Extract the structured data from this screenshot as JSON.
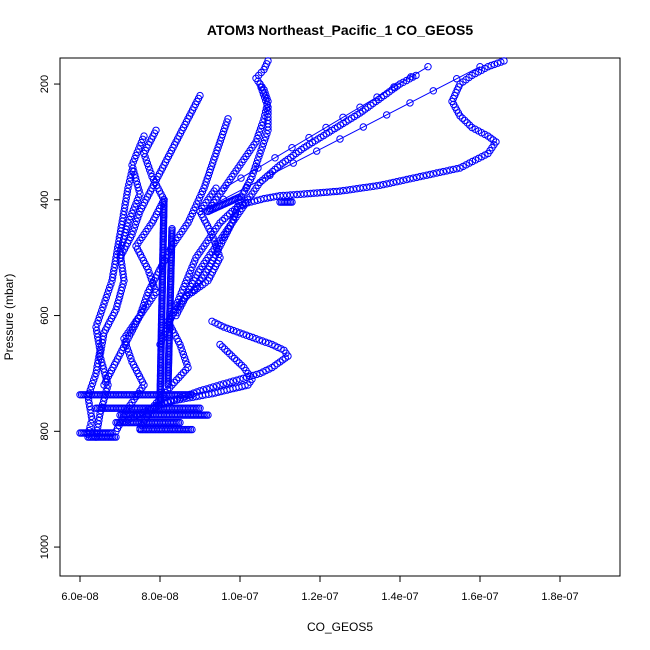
{
  "chart_data": {
    "type": "scatter",
    "title": "ATOM3 Northeast_Pacific_1 CO_GEOS5",
    "xlabel": "CO_GEOS5",
    "ylabel": "Pressure (mbar)",
    "xlim": [
      5.5e-08,
      1.95e-07
    ],
    "ylim": [
      1050,
      155
    ],
    "y_reversed": true,
    "grid": false,
    "legend": "none",
    "color": "#0000ff",
    "x_ticks": [
      6e-08,
      8e-08,
      1e-07,
      1.2e-07,
      1.4e-07,
      1.6e-07,
      1.8e-07
    ],
    "x_tick_labels": [
      "6.0e-08",
      "8.0e-08",
      "1.0e-07",
      "1.2e-07",
      "1.4e-07",
      "1.6e-07",
      "1.8e-07"
    ],
    "y_ticks": [
      200,
      400,
      600,
      800,
      1000
    ],
    "y_tick_labels": [
      "200",
      "400",
      "600",
      "800",
      "1000"
    ],
    "series": [
      {
        "x": [
          6.2e-08,
          6.3e-08,
          6.2e-08,
          6.4e-08,
          6.5e-08,
          6.4e-08,
          6.6e-08,
          6.8e-08,
          6.9e-08,
          7e-08,
          7.1e-08,
          7.2e-08,
          7.3e-08
        ],
        "y": [
          805,
          780,
          740,
          700,
          660,
          620,
          580,
          540,
          500,
          460,
          420,
          380,
          350
        ]
      },
      {
        "x": [
          6.4e-08,
          6.5e-08,
          6.7e-08,
          6.5e-08,
          6.6e-08,
          6.9e-08,
          7.1e-08,
          7e-08,
          7.2e-08,
          7.5e-08,
          7.3e-08,
          7.6e-08
        ],
        "y": [
          810,
          770,
          720,
          670,
          630,
          590,
          540,
          490,
          440,
          390,
          340,
          290
        ]
      },
      {
        "x": [
          6.9e-08,
          7.2e-08,
          7.6e-08,
          7.3e-08,
          7.1e-08,
          7.5e-08,
          7.9e-08,
          7.7e-08,
          7.4e-08,
          7.8e-08,
          8.1e-08,
          7.8e-08,
          7.6e-08,
          7.9e-08
        ],
        "y": [
          800,
          760,
          720,
          680,
          640,
          600,
          560,
          520,
          480,
          440,
          400,
          360,
          320,
          280
        ]
      },
      {
        "x": [
          7.5e-08,
          7.8e-08,
          8.3e-08,
          8.7e-08,
          8.5e-08,
          8.2e-08,
          8.6e-08,
          9.2e-08,
          9.5e-08,
          9.3e-08,
          9e-08,
          9.4e-08
        ],
        "y": [
          795,
          760,
          720,
          690,
          650,
          610,
          570,
          540,
          500,
          460,
          420,
          380
        ]
      },
      {
        "x": [
          7.2e-08,
          7.5e-08,
          7.8e-08,
          8.1e-08,
          8.5e-08,
          8.9e-08,
          9.3e-08,
          9.6e-08,
          9.9e-08,
          1.02e-07,
          1.03e-07,
          1.01e-07,
          9.8e-08,
          9.5e-08
        ],
        "y": [
          780,
          770,
          760,
          750,
          745,
          740,
          735,
          730,
          725,
          720,
          710,
          690,
          670,
          650
        ]
      },
      {
        "x": [
          7.8e-08,
          8.2e-08,
          8.6e-08,
          9e-08,
          9.5e-08,
          1e-07,
          1.05e-07,
          1.08e-07,
          1.1e-07,
          1.12e-07,
          1.11e-07,
          1.08e-07,
          1.04e-07,
          1e-07,
          9.6e-08,
          9.3e-08
        ],
        "y": [
          760,
          750,
          740,
          730,
          720,
          710,
          700,
          690,
          680,
          670,
          660,
          650,
          640,
          630,
          620,
          610
        ]
      },
      {
        "x": [
          8e-08,
          8.3e-08,
          8.6e-08,
          8.9e-08,
          9.2e-08,
          9.5e-08,
          9.8e-08,
          1e-07,
          1.02e-07,
          1.06e-07,
          1.1e-07,
          1.16e-07,
          1.25e-07,
          1.35e-07,
          1.45e-07,
          1.55e-07,
          1.62e-07,
          1.64e-07,
          1.62e-07,
          1.58e-07,
          1.55e-07,
          1.53e-07,
          1.55e-07,
          1.58e-07,
          1.62e-07,
          1.66e-07
        ],
        "y": [
          650,
          600,
          550,
          500,
          470,
          440,
          420,
          410,
          405,
          398,
          393,
          390,
          385,
          375,
          360,
          345,
          320,
          300,
          290,
          275,
          255,
          230,
          200,
          185,
          170,
          160
        ]
      },
      {
        "x": [
          8.4e-08,
          8.7e-08,
          9e-08,
          9.4e-08,
          9.8e-08,
          1.02e-07,
          1.05e-07,
          1.1e-07,
          1.16e-07,
          1.23e-07,
          1.3e-07,
          1.36e-07,
          1.4e-07,
          1.44e-07
        ],
        "y": [
          600,
          560,
          520,
          480,
          440,
          400,
          370,
          340,
          310,
          280,
          250,
          220,
          200,
          185
        ]
      },
      {
        "x": [
          8.8e-08,
          9.2e-08,
          9.5e-08,
          9.8e-08,
          1e-07,
          1.03e-07,
          1.05e-07,
          1.07e-07,
          1.07e-07,
          1.05e-07
        ],
        "y": [
          560,
          520,
          480,
          440,
          400,
          360,
          320,
          280,
          240,
          200
        ]
      },
      {
        "x": [
          9.2e-08,
          9.6e-08,
          1e-07,
          1.04e-07,
          1.06e-07,
          1.07e-07,
          1.06e-07,
          1.04e-07,
          1.06e-07,
          1.07e-07
        ],
        "y": [
          420,
          380,
          340,
          300,
          260,
          230,
          210,
          190,
          175,
          160
        ]
      },
      {
        "x": [
          6.6e-08,
          6.9e-08,
          7.2e-08,
          7.5e-08,
          7.7e-08,
          8e-08,
          8.3e-08,
          8.7e-08,
          9.1e-08,
          9.4e-08,
          9.7e-08
        ],
        "y": [
          720,
          680,
          640,
          600,
          560,
          520,
          480,
          440,
          380,
          320,
          260
        ]
      },
      {
        "x": [
          7e-08,
          7.3e-08,
          7.5e-08,
          7.8e-08,
          8.1e-08,
          8.4e-08,
          8.7e-08,
          9e-08
        ],
        "y": [
          500,
          460,
          420,
          380,
          340,
          300,
          260,
          220
        ]
      }
    ],
    "segments": [
      {
        "x": [
          6e-08,
          8.8e-08
        ],
        "y": [
          737,
          737
        ]
      },
      {
        "x": [
          6.4e-08,
          9e-08
        ],
        "y": [
          760,
          760
        ]
      },
      {
        "x": [
          7e-08,
          9.2e-08
        ],
        "y": [
          772,
          772
        ]
      },
      {
        "x": [
          6.9e-08,
          8.5e-08
        ],
        "y": [
          785,
          785
        ]
      },
      {
        "x": [
          7.5e-08,
          8.8e-08
        ],
        "y": [
          797,
          797
        ]
      },
      {
        "x": [
          6e-08,
          6.8e-08
        ],
        "y": [
          803,
          803
        ]
      },
      {
        "x": [
          6.2e-08,
          6.9e-08
        ],
        "y": [
          810,
          810
        ]
      },
      {
        "x": [
          8e-08,
          8.1e-08
        ],
        "y": [
          750,
          400
        ]
      },
      {
        "x": [
          8.2e-08,
          8.3e-08
        ],
        "y": [
          720,
          450
        ]
      },
      {
        "x": [
          9.2e-08,
          1e-07
        ],
        "y": [
          420,
          395
        ]
      },
      {
        "x": [
          1.1e-07,
          1.13e-07
        ],
        "y": [
          404,
          404
        ]
      }
    ],
    "lines": [
      {
        "x": [
          9e-08,
          1.6e-07
        ],
        "y": [
          420,
          170
        ]
      },
      {
        "x": [
          9.6e-08,
          1.47e-07
        ],
        "y": [
          380,
          170
        ]
      }
    ]
  }
}
